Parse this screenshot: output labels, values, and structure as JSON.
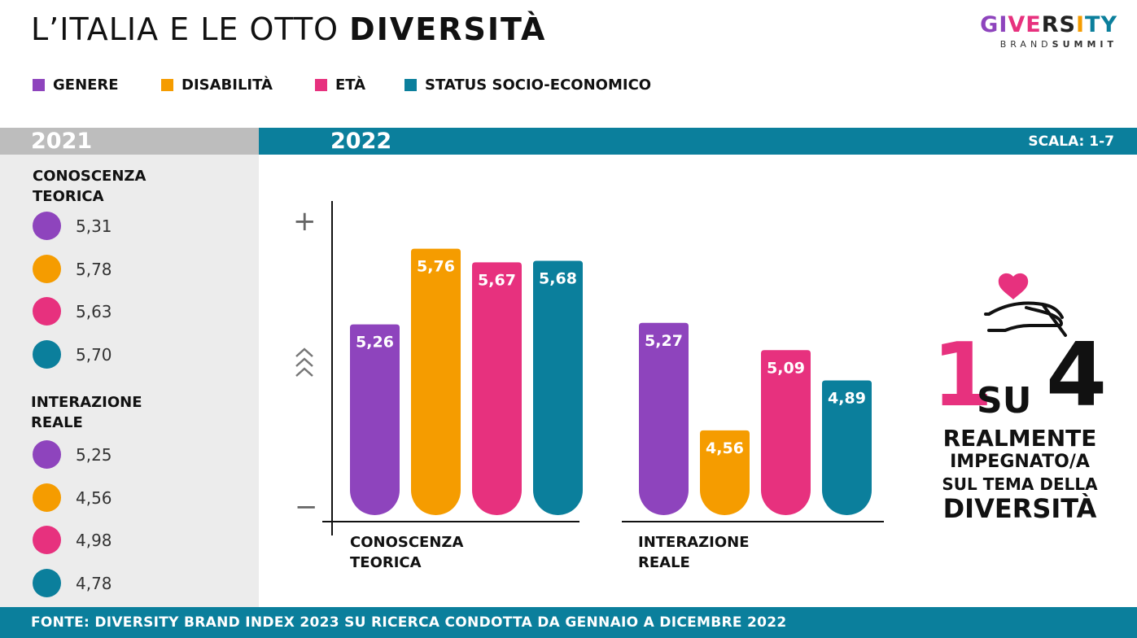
{
  "title": {
    "light": "L’ITALIA E LE OTTO ",
    "bold": "DIVERSITÀ"
  },
  "logo": {
    "word": "GIVERSITY",
    "sub_light": "BRAND",
    "sub_bold": "SUMMIT"
  },
  "legend": [
    {
      "label": "GENERE",
      "color": "#8e44bd"
    },
    {
      "label": "DISABILITÀ",
      "color": "#f59c00"
    },
    {
      "label": "ETÀ",
      "color": "#e7317e"
    },
    {
      "label": "STATUS SOCIO-ECONOMICO",
      "color": "#0b7f9c"
    }
  ],
  "bands": {
    "year_2021": "2021",
    "year_2022": "2022",
    "scale": "SCALA: 1-7"
  },
  "panel_2021": {
    "groups": [
      {
        "title": "CONOSCENZA\nTEORICA",
        "values": [
          "5,31",
          "5,78",
          "5,63",
          "5,70"
        ]
      },
      {
        "title": "INTERAZIONE\nREALE",
        "values": [
          "5,25",
          "4,56",
          "4,98",
          "4,78"
        ]
      }
    ]
  },
  "chart_data": {
    "type": "bar",
    "categories": [
      "CONOSCENZA\nTEORICA",
      "INTERAZIONE\nREALE"
    ],
    "series": [
      {
        "name": "GENERE",
        "color": "#8e44bd",
        "values": [
          5.26,
          5.27
        ],
        "labels": [
          "5,26",
          "5,27"
        ]
      },
      {
        "name": "DISABILITÀ",
        "color": "#f59c00",
        "values": [
          5.76,
          4.56
        ],
        "labels": [
          "5,76",
          "4,56"
        ]
      },
      {
        "name": "ETÀ",
        "color": "#e7317e",
        "values": [
          5.67,
          5.09
        ],
        "labels": [
          "5,67",
          "5,09"
        ]
      },
      {
        "name": "STATUS SOCIO-ECONOMICO",
        "color": "#0b7f9c",
        "values": [
          5.68,
          4.89
        ],
        "labels": [
          "5,68",
          "4,89"
        ]
      }
    ],
    "axis_markers": {
      "top": "+",
      "bottom": "−"
    }
  },
  "stat": {
    "number_1": "1",
    "su": "SU",
    "number_2": "4",
    "line1": "REALMENTE",
    "line2": "IMPEGNATO/A",
    "line3": "SUL TEMA DELLA",
    "line4": "DIVERSITÀ",
    "accent_color": "#e7317e"
  },
  "footer": "FONTE: DIVERSITY BRAND INDEX 2023 SU RICERCA CONDOTTA DA GENNAIO A DICEMBRE 2022"
}
